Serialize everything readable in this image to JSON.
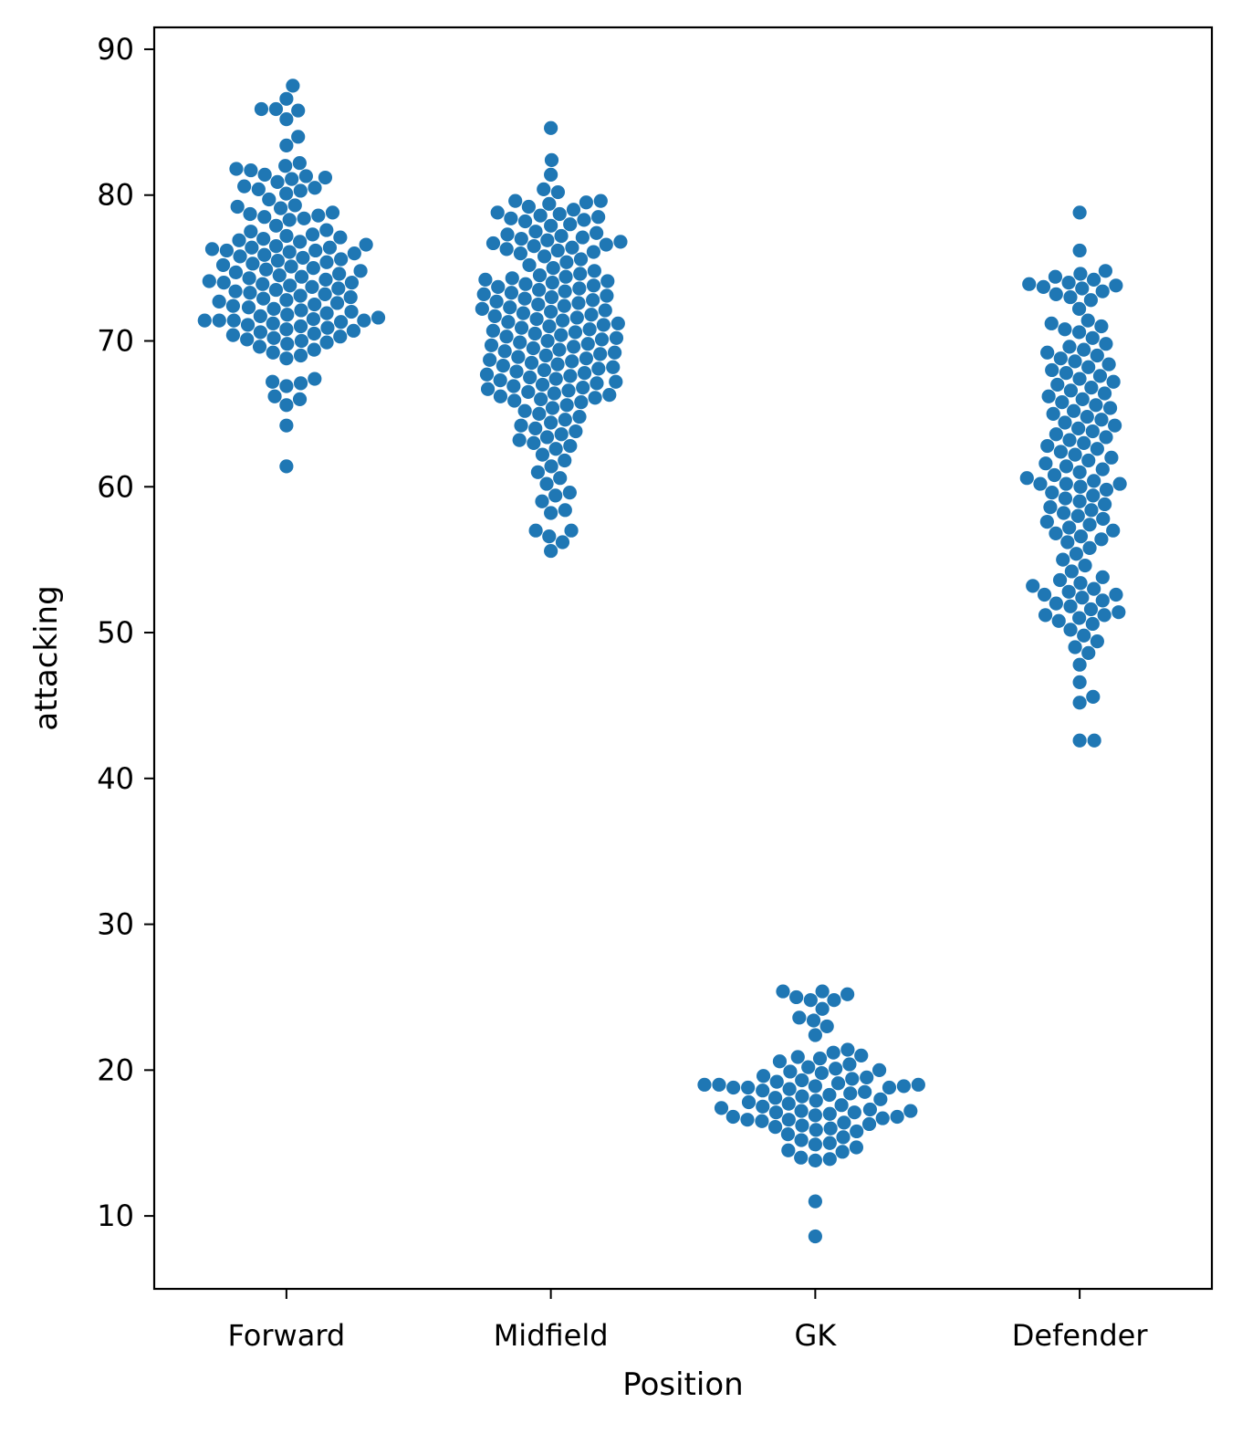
{
  "chart_data": {
    "type": "scatter",
    "subtype": "swarm",
    "xlabel": "Position",
    "ylabel": "attacking",
    "categories": [
      "Forward",
      "Midfield",
      "GK",
      "Defender"
    ],
    "ylim": [
      5,
      91.5
    ],
    "yticks": [
      10,
      20,
      30,
      40,
      50,
      60,
      70,
      80,
      90
    ],
    "grid": false,
    "legend": "none",
    "point_color": "#1f77b4",
    "series": [
      {
        "values": [
          87.5,
          86.6,
          85.9,
          85.9,
          85.8,
          85.2,
          84.0,
          83.4,
          82.2,
          82.0,
          81.8,
          81.7,
          81.4,
          81.3,
          81.2,
          81.1,
          80.9,
          80.6,
          80.5,
          80.4,
          80.3,
          80.1,
          79.7,
          79.3,
          79.2,
          79.1,
          78.8,
          78.7,
          78.6,
          78.5,
          78.4,
          78.3,
          77.9,
          77.6,
          77.5,
          77.3,
          77.2,
          77.1,
          77.0,
          76.9,
          76.8,
          76.6,
          76.5,
          76.4,
          76.4,
          76.3,
          76.2,
          76.2,
          76.1,
          76.0,
          75.9,
          75.8,
          75.7,
          75.6,
          75.5,
          75.4,
          75.3,
          75.2,
          75.1,
          75.0,
          74.9,
          74.8,
          74.7,
          74.6,
          74.5,
          74.4,
          74.3,
          74.2,
          74.1,
          74.0,
          74.0,
          73.9,
          73.8,
          73.7,
          73.6,
          73.5,
          73.4,
          73.3,
          73.2,
          73.1,
          73.0,
          72.9,
          72.8,
          72.7,
          72.6,
          72.5,
          72.4,
          72.3,
          72.2,
          72.1,
          72.0,
          71.9,
          71.8,
          71.7,
          71.6,
          71.5,
          71.4,
          71.4,
          71.4,
          71.4,
          71.3,
          71.2,
          71.1,
          71.0,
          70.9,
          70.8,
          70.7,
          70.6,
          70.5,
          70.4,
          70.3,
          70.2,
          70.1,
          70.0,
          69.9,
          69.8,
          69.6,
          69.4,
          69.2,
          69.0,
          68.8,
          67.4,
          67.2,
          67.1,
          66.9,
          66.2,
          66.0,
          65.6,
          64.2,
          61.4
        ]
      },
      {
        "values": [
          84.6,
          82.4,
          81.4,
          80.4,
          80.2,
          79.6,
          79.6,
          79.5,
          79.4,
          79.2,
          79.0,
          78.8,
          78.7,
          78.6,
          78.5,
          78.4,
          78.3,
          78.2,
          78.0,
          77.9,
          77.5,
          77.4,
          77.3,
          77.2,
          77.1,
          77.0,
          76.9,
          76.8,
          76.7,
          76.6,
          76.5,
          76.4,
          76.3,
          76.2,
          76.1,
          76.0,
          75.8,
          75.6,
          75.4,
          75.2,
          75.0,
          74.8,
          74.6,
          74.5,
          74.4,
          74.3,
          74.2,
          74.1,
          74.0,
          73.9,
          73.8,
          73.7,
          73.6,
          73.5,
          73.4,
          73.3,
          73.2,
          73.1,
          73.0,
          72.9,
          72.8,
          72.7,
          72.6,
          72.5,
          72.4,
          72.3,
          72.2,
          72.1,
          72.0,
          71.9,
          71.8,
          71.7,
          71.6,
          71.5,
          71.4,
          71.3,
          71.2,
          71.1,
          71.0,
          70.9,
          70.8,
          70.7,
          70.6,
          70.5,
          70.4,
          70.3,
          70.2,
          70.1,
          70.0,
          69.9,
          69.8,
          69.7,
          69.6,
          69.5,
          69.4,
          69.3,
          69.2,
          69.1,
          69.0,
          68.9,
          68.8,
          68.7,
          68.6,
          68.5,
          68.4,
          68.3,
          68.2,
          68.1,
          68.0,
          67.9,
          67.8,
          67.7,
          67.6,
          67.5,
          67.4,
          67.3,
          67.2,
          67.1,
          67.0,
          66.9,
          66.8,
          66.7,
          66.6,
          66.5,
          66.4,
          66.3,
          66.2,
          66.1,
          66.0,
          65.9,
          65.8,
          65.6,
          65.4,
          65.2,
          65.0,
          64.8,
          64.6,
          64.4,
          64.2,
          64.0,
          63.8,
          63.6,
          63.4,
          63.2,
          63.0,
          62.8,
          62.6,
          62.2,
          61.8,
          61.4,
          61.0,
          60.6,
          60.2,
          59.6,
          59.4,
          59.0,
          58.4,
          58.2,
          57.0,
          57.0,
          56.6,
          56.2,
          55.6
        ]
      },
      {
        "values": [
          25.4,
          25.4,
          25.2,
          25.0,
          24.8,
          24.8,
          24.2,
          23.6,
          23.4,
          23.0,
          22.4,
          21.4,
          21.2,
          21.0,
          20.9,
          20.8,
          20.6,
          20.4,
          20.2,
          20.1,
          20.0,
          19.9,
          19.8,
          19.6,
          19.5,
          19.4,
          19.3,
          19.2,
          19.1,
          19.0,
          19.0,
          19.0,
          18.9,
          18.9,
          18.8,
          18.8,
          18.8,
          18.7,
          18.6,
          18.5,
          18.4,
          18.3,
          18.2,
          18.1,
          18.0,
          17.9,
          17.8,
          17.7,
          17.6,
          17.5,
          17.4,
          17.3,
          17.2,
          17.2,
          17.1,
          17.1,
          17.0,
          16.9,
          16.8,
          16.8,
          16.7,
          16.6,
          16.6,
          16.5,
          16.4,
          16.3,
          16.2,
          16.1,
          16.0,
          15.9,
          15.8,
          15.6,
          15.4,
          15.2,
          15.0,
          14.9,
          14.7,
          14.5,
          14.4,
          14.0,
          13.9,
          13.8,
          11.0,
          8.6
        ]
      },
      {
        "values": [
          78.8,
          76.2,
          74.8,
          74.6,
          74.4,
          74.2,
          74.0,
          73.9,
          73.8,
          73.7,
          73.6,
          73.4,
          73.2,
          73.0,
          72.8,
          72.2,
          71.4,
          71.2,
          71.0,
          70.8,
          70.6,
          70.2,
          69.8,
          69.6,
          69.4,
          69.2,
          69.0,
          68.8,
          68.6,
          68.4,
          68.2,
          68.0,
          67.8,
          67.6,
          67.4,
          67.2,
          67.0,
          66.8,
          66.6,
          66.4,
          66.2,
          66.0,
          65.8,
          65.6,
          65.4,
          65.2,
          65.0,
          64.8,
          64.6,
          64.4,
          64.2,
          64.0,
          63.8,
          63.6,
          63.4,
          63.2,
          63.0,
          62.8,
          62.6,
          62.4,
          62.2,
          62.0,
          61.8,
          61.6,
          61.4,
          61.2,
          61.0,
          60.8,
          60.6,
          60.4,
          60.2,
          60.2,
          60.2,
          60.0,
          59.8,
          59.6,
          59.4,
          59.2,
          59.0,
          58.8,
          58.6,
          58.4,
          58.2,
          58.0,
          57.8,
          57.6,
          57.4,
          57.2,
          57.0,
          56.8,
          56.6,
          56.4,
          56.2,
          55.8,
          55.4,
          55.0,
          54.6,
          54.2,
          53.8,
          53.6,
          53.4,
          53.2,
          53.0,
          52.8,
          52.6,
          52.6,
          52.4,
          52.2,
          52.0,
          51.8,
          51.6,
          51.4,
          51.2,
          51.2,
          51.0,
          50.8,
          50.6,
          50.2,
          49.8,
          49.4,
          49.0,
          48.6,
          47.8,
          46.6,
          45.6,
          45.2,
          42.6,
          42.6
        ]
      }
    ]
  }
}
